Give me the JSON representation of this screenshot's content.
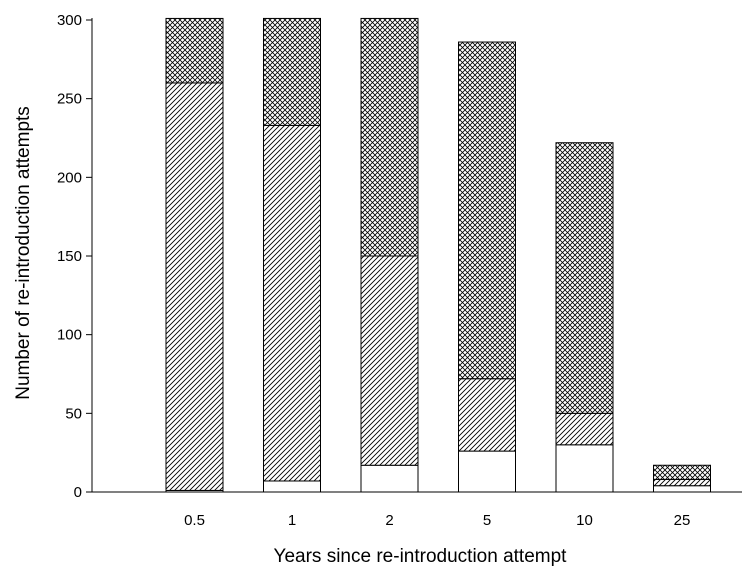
{
  "chart_data": {
    "type": "bar",
    "stacked": true,
    "title": "",
    "xlabel": "Years since re-introduction attempt",
    "ylabel": "Number of re-introduction attempts",
    "ylim": [
      0,
      300
    ],
    "yticks": [
      0,
      50,
      100,
      150,
      200,
      250,
      300
    ],
    "categories": [
      "0.5",
      "1",
      "2",
      "5",
      "10",
      "25"
    ],
    "grid": false,
    "legend": "none",
    "series": [
      {
        "fill": "plain",
        "values": [
          1,
          7,
          17,
          26,
          30,
          4
        ]
      },
      {
        "fill": "diagonal-hatch",
        "values": [
          259,
          226,
          133,
          46,
          20,
          4
        ]
      },
      {
        "fill": "crosshatch",
        "values": [
          41,
          68,
          151,
          214,
          172,
          9
        ]
      }
    ],
    "colors": {
      "bar_fill": "#ffffff",
      "stroke": "#000000",
      "background": "#ffffff"
    }
  }
}
